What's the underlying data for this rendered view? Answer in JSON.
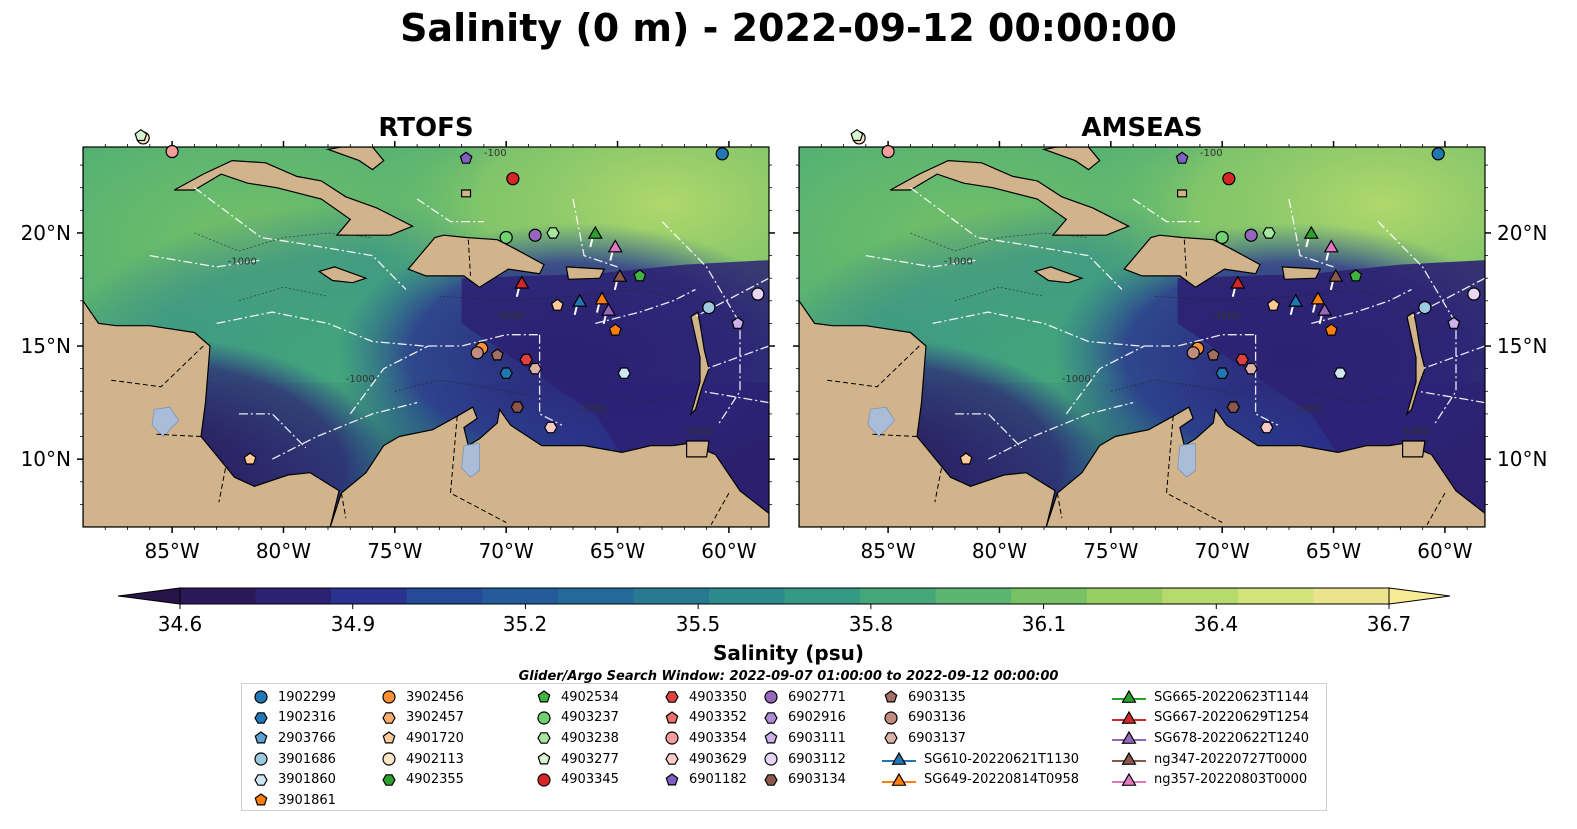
{
  "title": "Salinity (0 m) - 2022-09-12 00:00:00",
  "panels": [
    {
      "title": "RTOFS"
    },
    {
      "title": "AMSEAS"
    }
  ],
  "axes": {
    "lon_ticks": [
      "85°W",
      "80°W",
      "75°W",
      "70°W",
      "65°W",
      "60°W"
    ],
    "lat_ticks": [
      "20°N",
      "15°N",
      "10°N"
    ],
    "contour_labels": [
      "-1000",
      "-1000",
      "-2000",
      "-3000",
      "-100",
      "-1000"
    ]
  },
  "colorbar": {
    "label": "Salinity (psu)",
    "ticks": [
      "34.6",
      "34.9",
      "35.2",
      "35.5",
      "35.8",
      "36.1",
      "36.4",
      "36.7"
    ],
    "colors": [
      "#2a1858",
      "#2d2173",
      "#2a3290",
      "#254a9a",
      "#235a9a",
      "#246a98",
      "#277992",
      "#2c8a8d",
      "#349a84",
      "#44a77a",
      "#5bb570",
      "#78c266",
      "#96cf64",
      "#b6da6b",
      "#d2e37a",
      "#ece48c"
    ],
    "extend_low": "#271448",
    "extend_high": "#f7eb93"
  },
  "colors": {
    "land": "#d2b48c",
    "ocean_deep": "#2a1a5e",
    "pacific_amseas": "#98b6e2",
    "lakes": "#a9bdd8"
  },
  "search_window": "Glider/Argo Search Window: 2022-09-07 01:00:00 to 2022-09-12 00:00:00",
  "legend": {
    "columns": [
      [
        {
          "label": "1902299",
          "marker": "circle",
          "color": "#1f77b4"
        },
        {
          "label": "1902316",
          "marker": "hexagon",
          "color": "#1f77b4"
        },
        {
          "label": "2903766",
          "marker": "pentagon",
          "color": "#5fa2d6"
        },
        {
          "label": "3901686",
          "marker": "circle",
          "color": "#9ecae1"
        },
        {
          "label": "3901860",
          "marker": "hexagon",
          "color": "#cfe6f4"
        },
        {
          "label": "3901861",
          "marker": "pentagon",
          "color": "#ff7f0e"
        }
      ],
      [
        {
          "label": "3902456",
          "marker": "circle",
          "color": "#ff9033"
        },
        {
          "label": "3902457",
          "marker": "hexagon",
          "color": "#ffad6b"
        },
        {
          "label": "4901720",
          "marker": "pentagon",
          "color": "#ffc999"
        },
        {
          "label": "4902113",
          "marker": "circle",
          "color": "#ffe6c6"
        },
        {
          "label": "4902355",
          "marker": "hexagon",
          "color": "#2ca02c"
        }
      ],
      [
        {
          "label": "4902534",
          "marker": "pentagon",
          "color": "#41b341"
        },
        {
          "label": "4903237",
          "marker": "circle",
          "color": "#6fd16f"
        },
        {
          "label": "4903238",
          "marker": "hexagon",
          "color": "#a6e7a0"
        },
        {
          "label": "4903277",
          "marker": "pentagon",
          "color": "#d6f5d0"
        },
        {
          "label": "4903345",
          "marker": "circle",
          "color": "#d62728"
        }
      ],
      [
        {
          "label": "4903350",
          "marker": "hexagon",
          "color": "#e0413f"
        },
        {
          "label": "4903352",
          "marker": "pentagon",
          "color": "#ee6e6c"
        },
        {
          "label": "4903354",
          "marker": "circle",
          "color": "#f59d9b"
        },
        {
          "label": "4903629",
          "marker": "hexagon",
          "color": "#fbc9c6"
        },
        {
          "label": "6901182",
          "marker": "pentagon",
          "color": "#7f5fbf"
        }
      ],
      [
        {
          "label": "6902771",
          "marker": "circle",
          "color": "#9467bd"
        },
        {
          "label": "6902916",
          "marker": "hexagon",
          "color": "#b08bd6"
        },
        {
          "label": "6903111",
          "marker": "pentagon",
          "color": "#ccb1ea"
        },
        {
          "label": "6903112",
          "marker": "circle",
          "color": "#e8d6f7"
        },
        {
          "label": "6903134",
          "marker": "hexagon",
          "color": "#8c564b"
        }
      ],
      [
        {
          "label": "6903135",
          "marker": "pentagon",
          "color": "#a57064"
        },
        {
          "label": "6903136",
          "marker": "circle",
          "color": "#c08c80"
        },
        {
          "label": "6903137",
          "marker": "hexagon",
          "color": "#dcb2a6"
        },
        {
          "label": "SG610-20220621T1130",
          "marker": "triangle-line",
          "color": "#1f77b4"
        },
        {
          "label": "SG649-20220814T0958",
          "marker": "triangle-line",
          "color": "#ff7f0e"
        }
      ],
      [
        {
          "label": "SG665-20220623T1144",
          "marker": "triangle-line",
          "color": "#2ca02c"
        },
        {
          "label": "SG667-20220629T1254",
          "marker": "triangle-line",
          "color": "#d62728"
        },
        {
          "label": "SG678-20220622T1240",
          "marker": "triangle-line",
          "color": "#9467bd"
        },
        {
          "label": "ng347-20220727T0000",
          "marker": "triangle-line",
          "color": "#8c564b"
        },
        {
          "label": "ng357-20220803T0000",
          "marker": "triangle-line",
          "color": "#e377c2"
        }
      ]
    ]
  },
  "markers": [
    {
      "label": "4903354",
      "lon": -85.0,
      "lat": 23.6
    },
    {
      "label": "1902299",
      "lon": -60.3,
      "lat": 23.5
    },
    {
      "label": "6901182",
      "lon": -71.8,
      "lat": 23.3
    },
    {
      "label": "4903345",
      "lon": -69.7,
      "lat": 22.4
    },
    {
      "label": "4903237",
      "lon": -70.0,
      "lat": 19.8
    },
    {
      "label": "6902771",
      "lon": -68.7,
      "lat": 19.9
    },
    {
      "label": "4903238",
      "lon": -67.9,
      "lat": 20.0
    },
    {
      "label": "SG665-20220623T1144",
      "lon": -66.0,
      "lat": 20.0
    },
    {
      "label": "ng357-20220803T0000",
      "lon": -65.1,
      "lat": 19.4
    },
    {
      "label": "SG667-20220629T1254",
      "lon": -69.3,
      "lat": 17.8
    },
    {
      "label": "ng347-20220727T0000",
      "lon": -64.9,
      "lat": 18.1
    },
    {
      "label": "4902534",
      "lon": -64.0,
      "lat": 18.1
    },
    {
      "label": "6903112",
      "lon": -58.7,
      "lat": 17.3
    },
    {
      "label": "4901720",
      "lon": -67.7,
      "lat": 16.8
    },
    {
      "label": "SG610-20220621T1130",
      "lon": -66.7,
      "lat": 17.0
    },
    {
      "label": "SG649-20220814T0958",
      "lon": -65.7,
      "lat": 17.1
    },
    {
      "label": "SG678-20220622T1240",
      "lon": -65.4,
      "lat": 16.6
    },
    {
      "label": "3901686",
      "lon": -60.9,
      "lat": 16.7
    },
    {
      "label": "6903111",
      "lon": -59.6,
      "lat": 16.0
    },
    {
      "label": "3901861",
      "lon": -65.1,
      "lat": 15.7
    },
    {
      "label": "3902456",
      "lon": -71.1,
      "lat": 14.9
    },
    {
      "label": "6903136",
      "lon": -71.3,
      "lat": 14.7
    },
    {
      "label": "6903135",
      "lon": -70.4,
      "lat": 14.6
    },
    {
      "label": "4903350",
      "lon": -69.1,
      "lat": 14.4
    },
    {
      "label": "6903137",
      "lon": -68.7,
      "lat": 14.0
    },
    {
      "label": "1902316",
      "lon": -70.0,
      "lat": 13.8
    },
    {
      "label": "3901860",
      "lon": -64.7,
      "lat": 13.8
    },
    {
      "label": "6903134",
      "lon": -69.5,
      "lat": 12.3
    },
    {
      "label": "4903629",
      "lon": -68.0,
      "lat": 11.4
    },
    {
      "label": "4902113",
      "lon": -86.3,
      "lat": 24.2
    },
    {
      "label": "4903277",
      "lon": -86.4,
      "lat": 24.3
    },
    {
      "label": "4901720",
      "lon": -81.5,
      "lat": 10.0
    }
  ]
}
